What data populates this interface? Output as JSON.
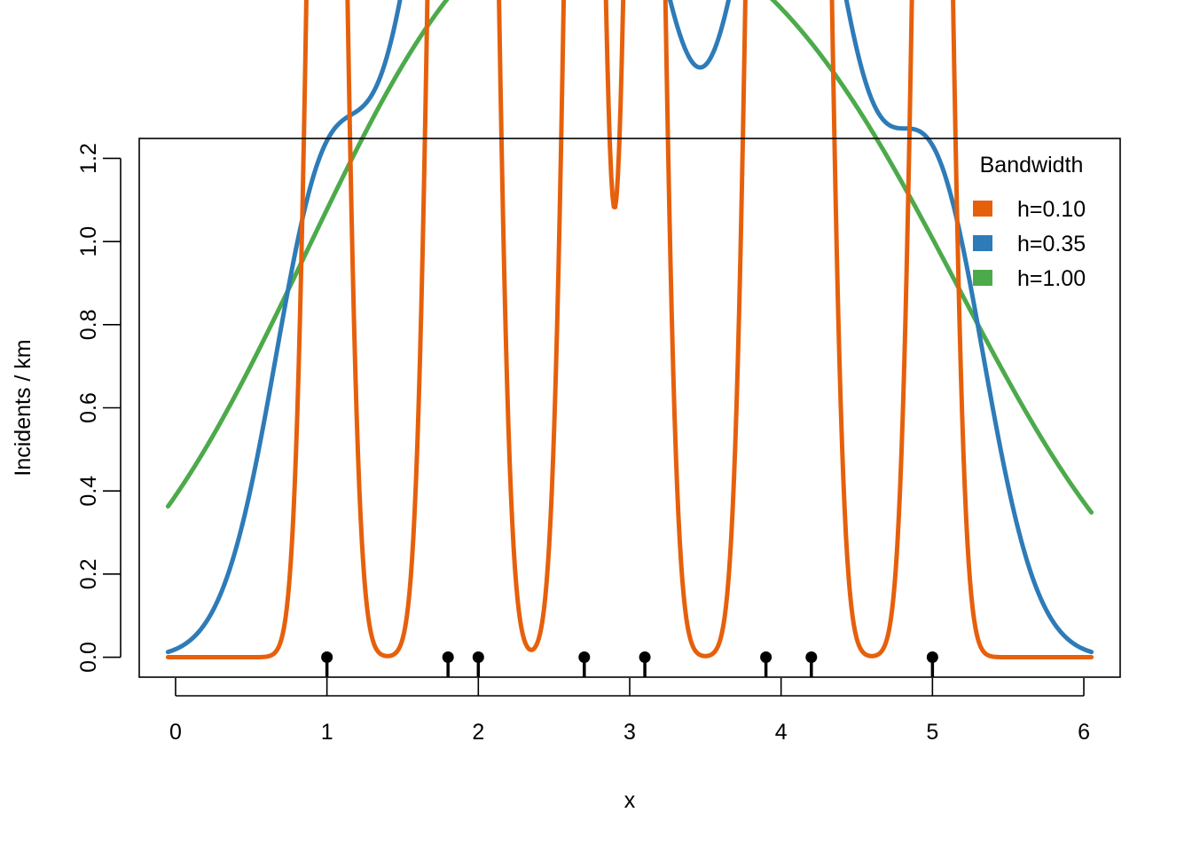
{
  "chart_data": {
    "type": "line",
    "title": "",
    "xlabel": "x",
    "ylabel": "Incidents / km",
    "xlim": [
      -0.24,
      6.24
    ],
    "ylim": [
      -0.048,
      1.248
    ],
    "x_ticks": [
      "0",
      "1",
      "2",
      "3",
      "4",
      "5",
      "6"
    ],
    "y_ticks": [
      "0.0",
      "0.2",
      "0.4",
      "0.6",
      "0.8",
      "1.0",
      "1.2"
    ],
    "grid": false,
    "legend": {
      "title": "Bandwidth",
      "position": "top-right"
    },
    "events": [
      1.0,
      1.8,
      2.0,
      2.7,
      3.1,
      3.9,
      4.2,
      5.0
    ],
    "x_range": [
      -0.05,
      6.05
    ],
    "series": [
      {
        "name": "h=0.10",
        "bandwidth": 0.1,
        "color": "#e6600c"
      },
      {
        "name": "h=0.35",
        "bandwidth": 0.35,
        "color": "#2e7bb8"
      },
      {
        "name": "h=1.00",
        "bandwidth": 1.0,
        "color": "#4daa4b"
      }
    ]
  }
}
